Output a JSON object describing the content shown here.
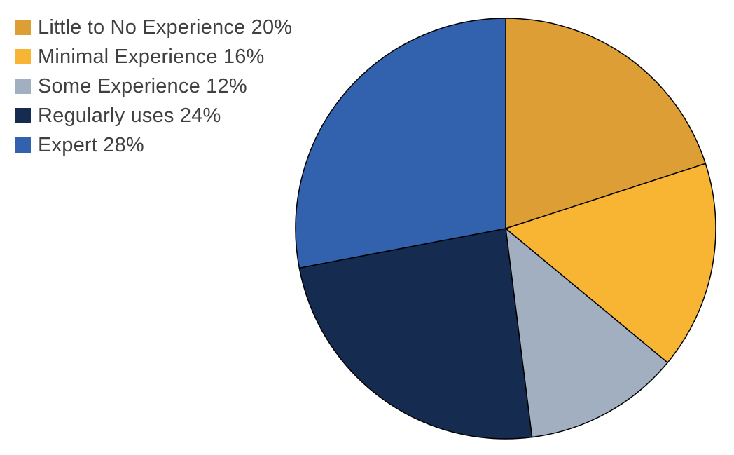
{
  "chart_data": {
    "type": "pie",
    "categories": [
      "Little to No Experience",
      "Minimal Experience",
      "Some Experience",
      "Regularly uses",
      "Expert"
    ],
    "values": [
      20,
      16,
      12,
      24,
      28
    ],
    "legend_labels": [
      "Little to No Experience 20%",
      "Minimal Experience 16%",
      "Some Experience 12%",
      "Regularly uses 24%",
      "Expert 28%"
    ],
    "colors": [
      "#DD9E36",
      "#F8B433",
      "#A2AFC1",
      "#152C50",
      "#3261AE"
    ],
    "start": "12 o'clock",
    "direction": "clockwise",
    "legend_position": "top-left"
  }
}
